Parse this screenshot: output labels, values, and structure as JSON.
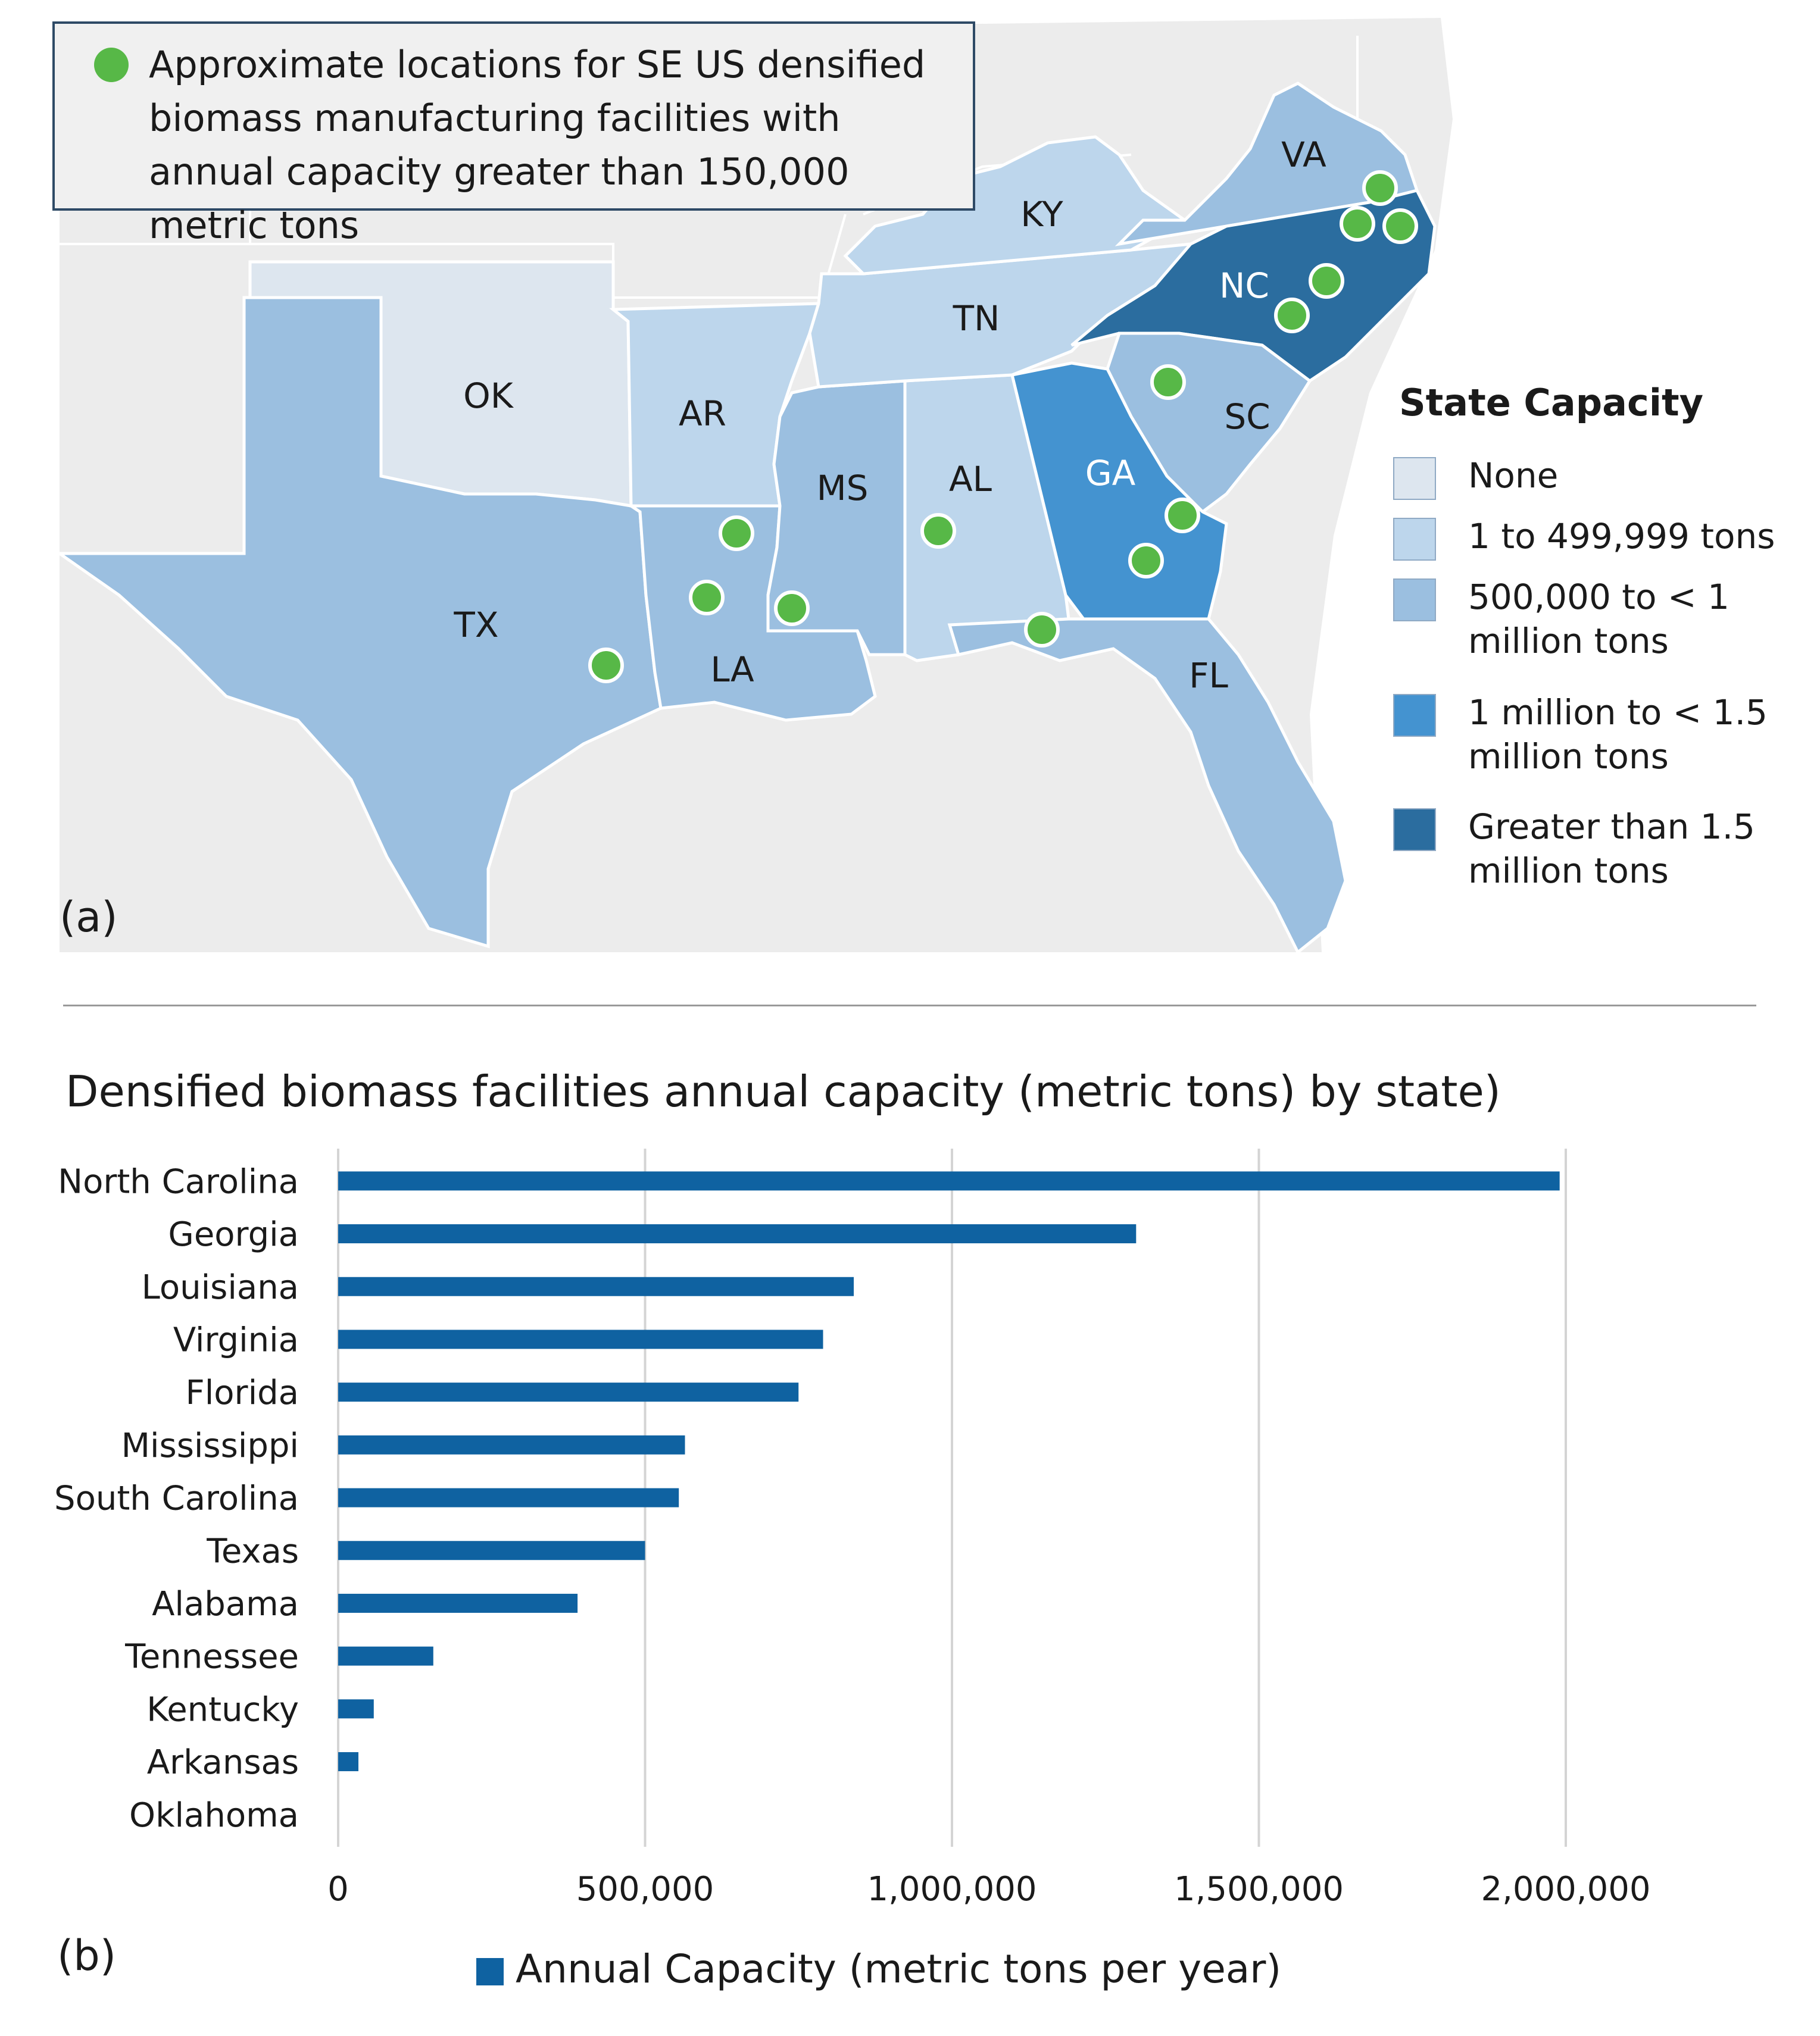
{
  "figure": {
    "panel_a_label": "(a)",
    "panel_b_label": "(b)"
  },
  "map": {
    "facility_legend": "Approximate locations for SE US densified biomass manufacturing facilities with annual capacity greater than 150,000 metric tons",
    "facility_marker_color": "#57b847",
    "capacity_legend_title": "State Capacity",
    "capacity_legend": [
      {
        "label": "None",
        "color": "#dde6ef"
      },
      {
        "label": "1 to 499,999 tons",
        "color": "#bdd6ec"
      },
      {
        "label": "500,000 to < 1 million tons",
        "color": "#9bbfe0"
      },
      {
        "label": "1 million to < 1.5 million tons",
        "color": "#4493d0"
      },
      {
        "label": "Greater than 1.5 million tons",
        "color": "#2b6d9f"
      }
    ],
    "states": [
      {
        "abbr": "VA",
        "class": 2
      },
      {
        "abbr": "KY",
        "class": 1
      },
      {
        "abbr": "NC",
        "class": 4
      },
      {
        "abbr": "TN",
        "class": 1
      },
      {
        "abbr": "OK",
        "class": 0
      },
      {
        "abbr": "AR",
        "class": 1
      },
      {
        "abbr": "SC",
        "class": 2
      },
      {
        "abbr": "MS",
        "class": 2
      },
      {
        "abbr": "AL",
        "class": 1
      },
      {
        "abbr": "GA",
        "class": 3
      },
      {
        "abbr": "TX",
        "class": 2
      },
      {
        "abbr": "LA",
        "class": 2
      },
      {
        "abbr": "FL",
        "class": 2
      }
    ]
  },
  "chart_data": {
    "type": "bar",
    "orientation": "horizontal",
    "title": "Densified biomass facilities annual capacity (metric tons) by state)",
    "categories": [
      "North Carolina",
      "Georgia",
      "Louisiana",
      "Virginia",
      "Florida",
      "Mississippi",
      "South Carolina",
      "Texas",
      "Alabama",
      "Tennessee",
      "Kentucky",
      "Arkansas",
      "Oklahoma"
    ],
    "series": [
      {
        "name": "Annual Capacity (metric tons per year)",
        "color": "#0f62a1",
        "values": [
          1990000,
          1300000,
          840000,
          790000,
          750000,
          565000,
          555000,
          500000,
          390000,
          155000,
          58000,
          33000,
          0
        ]
      }
    ],
    "xlim": [
      0,
      2000000
    ],
    "xticks": [
      "0",
      "500,000",
      "1,000,000",
      "1,500,000",
      "2,000,000"
    ],
    "grid": true,
    "legend": "bottom-center"
  }
}
